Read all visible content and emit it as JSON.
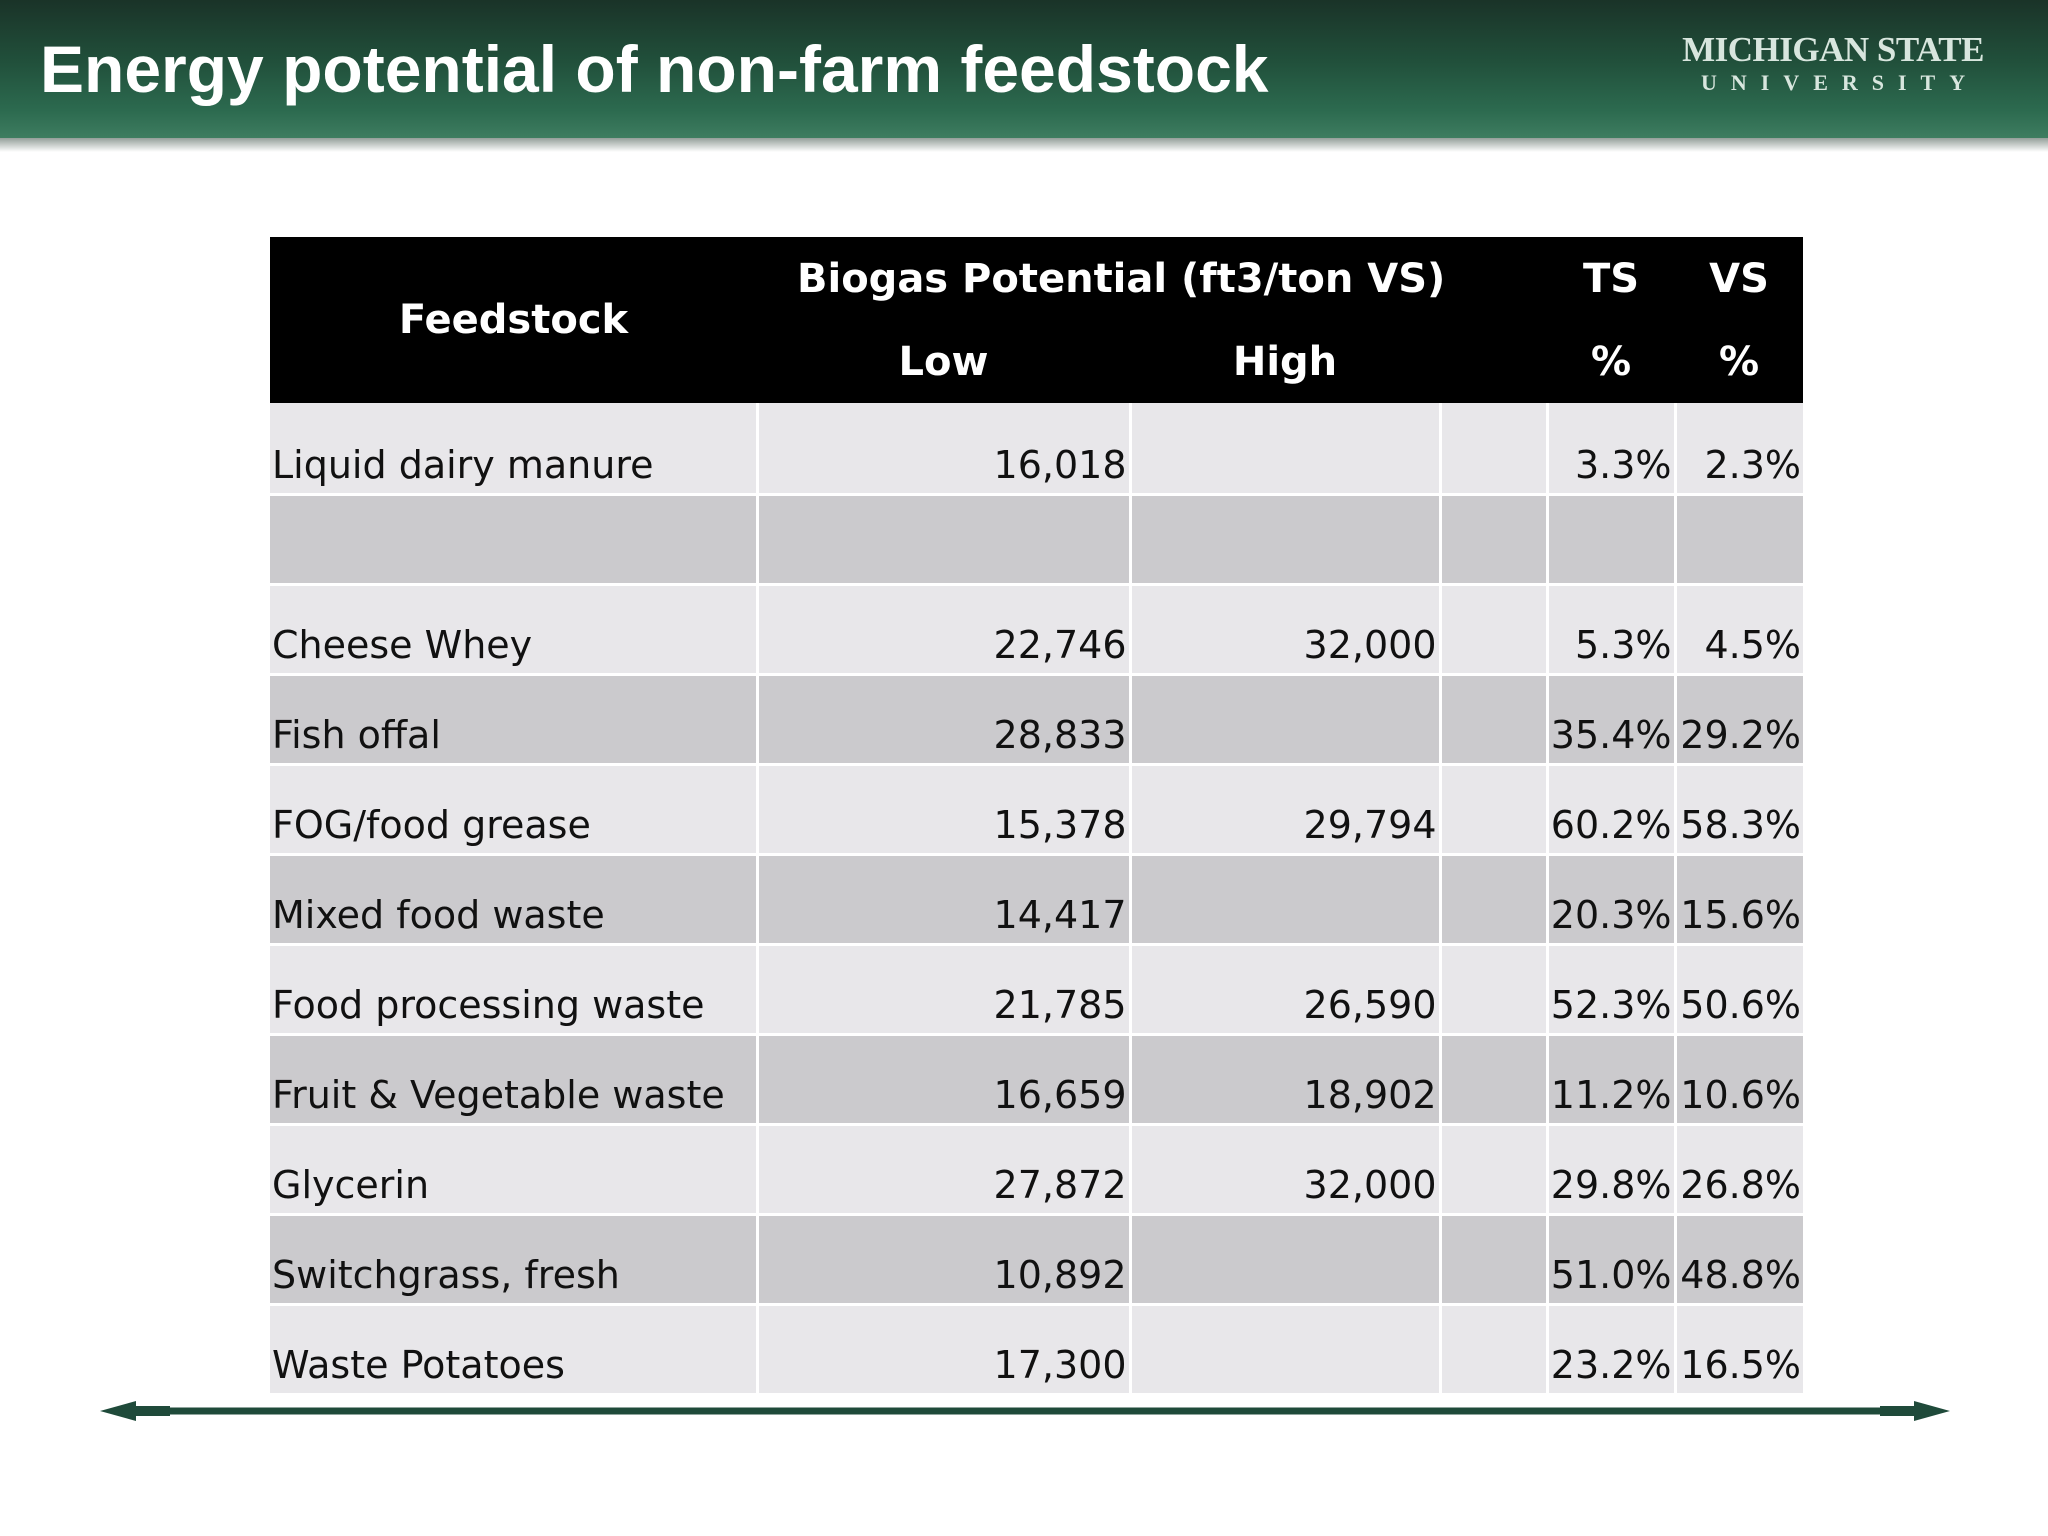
{
  "slide": {
    "title": "Energy potential of non-farm feedstock",
    "logo": {
      "line1": "MICHIGAN STATE",
      "line2": "UNIVERSITY"
    }
  },
  "table": {
    "header": {
      "feedstock": "Feedstock",
      "biogas_group": "Biogas Potential (ft3/ton VS)",
      "low": "Low",
      "high": "High",
      "ts": "TS",
      "ts_unit": "%",
      "vs": "VS",
      "vs_unit": "%"
    },
    "rows": [
      {
        "feedstock": "Liquid dairy manure",
        "low": "16,018",
        "high": "",
        "extra": "",
        "ts": "3.3%",
        "vs": "2.3%"
      },
      {
        "feedstock": "",
        "low": "",
        "high": "",
        "extra": "",
        "ts": "",
        "vs": ""
      },
      {
        "feedstock": "Cheese Whey",
        "low": "22,746",
        "high": "32,000",
        "extra": "",
        "ts": "5.3%",
        "vs": "4.5%"
      },
      {
        "feedstock": "Fish offal",
        "low": "28,833",
        "high": "",
        "extra": "",
        "ts": "35.4%",
        "vs": "29.2%"
      },
      {
        "feedstock": "FOG/food grease",
        "low": "15,378",
        "high": "29,794",
        "extra": "",
        "ts": "60.2%",
        "vs": "58.3%"
      },
      {
        "feedstock": "Mixed food waste",
        "low": "14,417",
        "high": "",
        "extra": "",
        "ts": "20.3%",
        "vs": "15.6%"
      },
      {
        "feedstock": "Food processing waste",
        "low": "21,785",
        "high": "26,590",
        "extra": "",
        "ts": "52.3%",
        "vs": "50.6%"
      },
      {
        "feedstock": "Fruit & Vegetable waste",
        "low": "16,659",
        "high": "18,902",
        "extra": "",
        "ts": "11.2%",
        "vs": "10.6%"
      },
      {
        "feedstock": "Glycerin",
        "low": "27,872",
        "high": "32,000",
        "extra": "",
        "ts": "29.8%",
        "vs": "26.8%"
      },
      {
        "feedstock": "Switchgrass, fresh",
        "low": "10,892",
        "high": "",
        "extra": "",
        "ts": "51.0%",
        "vs": "48.8%"
      },
      {
        "feedstock": "Waste Potatoes",
        "low": "17,300",
        "high": "",
        "extra": "",
        "ts": "23.2%",
        "vs": "16.5%"
      }
    ]
  },
  "colors": {
    "header_green": "#21503b",
    "table_header": "#000000",
    "row_light": "#e8e7ea",
    "row_dark": "#cbcacd",
    "arrow": "#1f4a3a"
  },
  "icons": {
    "footer": "double-arrow-line"
  }
}
